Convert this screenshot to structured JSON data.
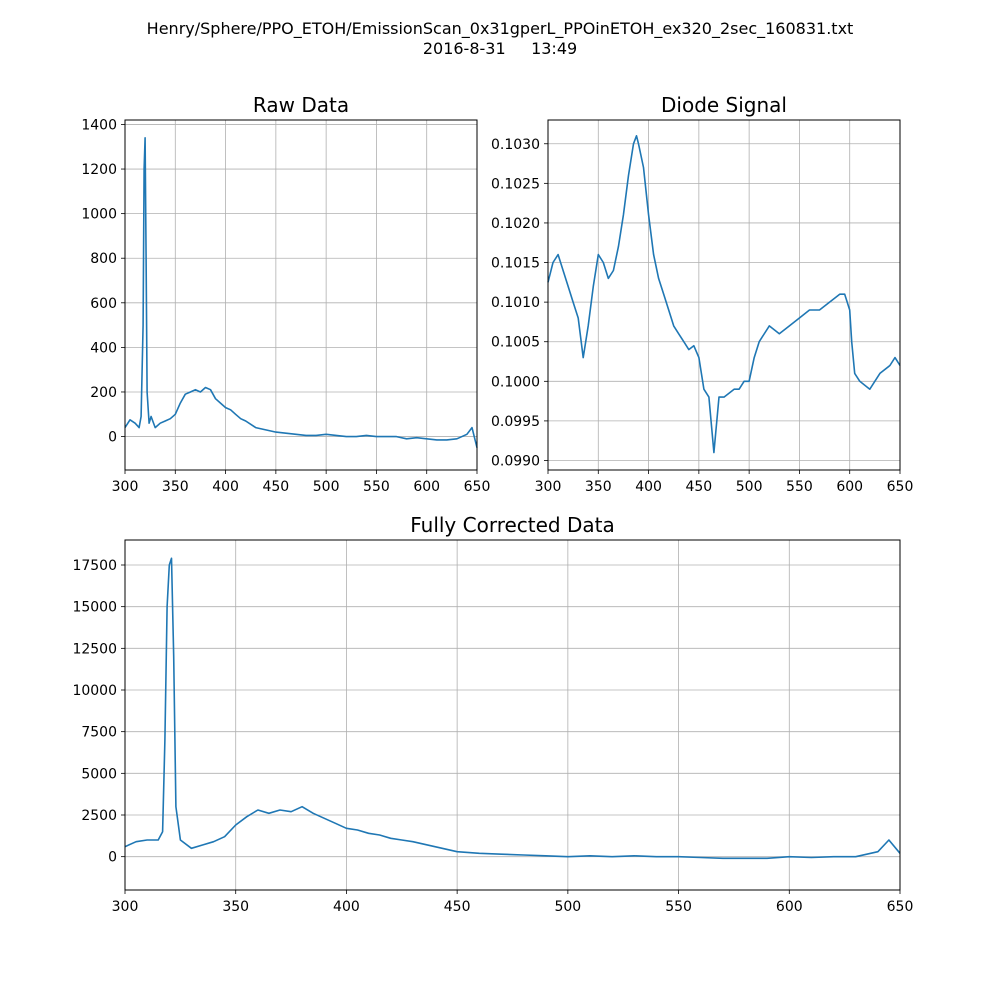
{
  "suptitle": {
    "line1": "Henry/Sphere/PPO_ETOH/EmissionScan_0x31gperL_PPOinETOH_ex320_2sec_160831.txt",
    "line2": "2016-8-31     13:49"
  },
  "colors": {
    "series": "#1f77b4",
    "grid": "#b0b0b0",
    "axes": "#000000"
  },
  "chart_data": [
    {
      "id": "raw",
      "type": "line",
      "title": "Raw Data",
      "xlabel": "",
      "ylabel": "",
      "xlim": [
        300,
        650
      ],
      "ylim": [
        -150,
        1420
      ],
      "xticks": [
        300,
        350,
        400,
        450,
        500,
        550,
        600,
        650
      ],
      "yticks": [
        0,
        200,
        400,
        600,
        800,
        1000,
        1200,
        1400
      ],
      "ytick_labels": [
        "0",
        "200",
        "400",
        "600",
        "800",
        "1000",
        "1200",
        "1400"
      ],
      "grid": true,
      "series": [
        {
          "x": [
            300,
            305,
            310,
            314,
            316,
            318,
            319,
            320,
            321,
            322,
            324,
            326,
            330,
            335,
            340,
            345,
            350,
            355,
            360,
            365,
            370,
            375,
            380,
            385,
            390,
            395,
            400,
            405,
            410,
            415,
            420,
            430,
            440,
            450,
            460,
            470,
            480,
            490,
            500,
            510,
            520,
            530,
            540,
            550,
            560,
            570,
            580,
            590,
            600,
            610,
            620,
            630,
            640,
            645,
            650
          ],
          "y": [
            40,
            75,
            60,
            40,
            90,
            500,
            1200,
            1340,
            800,
            200,
            60,
            90,
            40,
            60,
            70,
            80,
            100,
            150,
            190,
            200,
            210,
            200,
            220,
            210,
            170,
            150,
            130,
            120,
            100,
            80,
            70,
            40,
            30,
            20,
            15,
            10,
            5,
            5,
            10,
            5,
            0,
            0,
            5,
            0,
            0,
            0,
            -10,
            -5,
            -10,
            -15,
            -15,
            -10,
            10,
            40,
            -50
          ]
        }
      ]
    },
    {
      "id": "diode",
      "type": "line",
      "title": "Diode Signal",
      "xlabel": "",
      "ylabel": "",
      "xlim": [
        300,
        650
      ],
      "ylim": [
        0.09888,
        0.1033
      ],
      "xticks": [
        300,
        350,
        400,
        450,
        500,
        550,
        600,
        650
      ],
      "yticks": [
        0.099,
        0.0995,
        0.1,
        0.1005,
        0.101,
        0.1015,
        0.102,
        0.1025,
        0.103
      ],
      "ytick_labels": [
        "0.0990",
        "0.0995",
        "0.1000",
        "0.1005",
        "0.1010",
        "0.1015",
        "0.1020",
        "0.1025",
        "0.1030"
      ],
      "grid": true,
      "series": [
        {
          "x": [
            300,
            305,
            310,
            315,
            320,
            325,
            330,
            335,
            340,
            345,
            350,
            355,
            360,
            365,
            370,
            375,
            380,
            385,
            388,
            390,
            395,
            400,
            405,
            410,
            415,
            420,
            425,
            430,
            435,
            440,
            445,
            450,
            455,
            460,
            465,
            470,
            475,
            480,
            485,
            490,
            495,
            500,
            505,
            510,
            520,
            530,
            540,
            550,
            560,
            570,
            580,
            590,
            595,
            600,
            602,
            605,
            610,
            620,
            630,
            640,
            645,
            650
          ],
          "y": [
            0.10125,
            0.1015,
            0.1016,
            0.1014,
            0.1012,
            0.101,
            0.1008,
            0.1003,
            0.1007,
            0.1012,
            0.1016,
            0.1015,
            0.1013,
            0.1014,
            0.1017,
            0.1021,
            0.1026,
            0.103,
            0.1031,
            0.103,
            0.1027,
            0.1021,
            0.1016,
            0.1013,
            0.1011,
            0.1009,
            0.1007,
            0.1006,
            0.1005,
            0.1004,
            0.10045,
            0.1003,
            0.0999,
            0.0998,
            0.0991,
            0.0998,
            0.0998,
            0.09985,
            0.0999,
            0.0999,
            0.1,
            0.1,
            0.1003,
            0.1005,
            0.1007,
            0.1006,
            0.1007,
            0.1008,
            0.1009,
            0.1009,
            0.101,
            0.1011,
            0.1011,
            0.1009,
            0.1005,
            0.1001,
            0.1,
            0.0999,
            0.1001,
            0.1002,
            0.1003,
            0.1002
          ]
        }
      ]
    },
    {
      "id": "corrected",
      "type": "line",
      "title": "Fully Corrected Data",
      "xlabel": "",
      "ylabel": "",
      "xlim": [
        300,
        650
      ],
      "ylim": [
        -2000,
        19000
      ],
      "xticks": [
        300,
        350,
        400,
        450,
        500,
        550,
        600,
        650
      ],
      "yticks": [
        0,
        2500,
        5000,
        7500,
        10000,
        12500,
        15000,
        17500
      ],
      "ytick_labels": [
        "0",
        "2500",
        "5000",
        "7500",
        "10000",
        "12500",
        "15000",
        "17500"
      ],
      "grid": true,
      "series": [
        {
          "x": [
            300,
            305,
            310,
            315,
            317,
            318,
            319,
            320,
            321,
            322,
            323,
            325,
            330,
            335,
            340,
            345,
            350,
            355,
            360,
            365,
            370,
            375,
            380,
            385,
            390,
            395,
            400,
            405,
            410,
            415,
            420,
            425,
            430,
            440,
            450,
            460,
            470,
            480,
            490,
            500,
            510,
            520,
            530,
            540,
            550,
            560,
            570,
            580,
            590,
            600,
            610,
            620,
            630,
            640,
            645,
            650
          ],
          "y": [
            600,
            900,
            1000,
            1000,
            1500,
            7000,
            15000,
            17500,
            17900,
            12000,
            3000,
            1000,
            500,
            700,
            900,
            1200,
            1900,
            2400,
            2800,
            2600,
            2800,
            2700,
            3000,
            2600,
            2300,
            2000,
            1700,
            1600,
            1400,
            1300,
            1100,
            1000,
            900,
            600,
            300,
            200,
            150,
            100,
            50,
            0,
            50,
            0,
            50,
            0,
            0,
            -50,
            -100,
            -100,
            -100,
            0,
            -50,
            0,
            0,
            300,
            1000,
            200
          ]
        }
      ]
    }
  ]
}
